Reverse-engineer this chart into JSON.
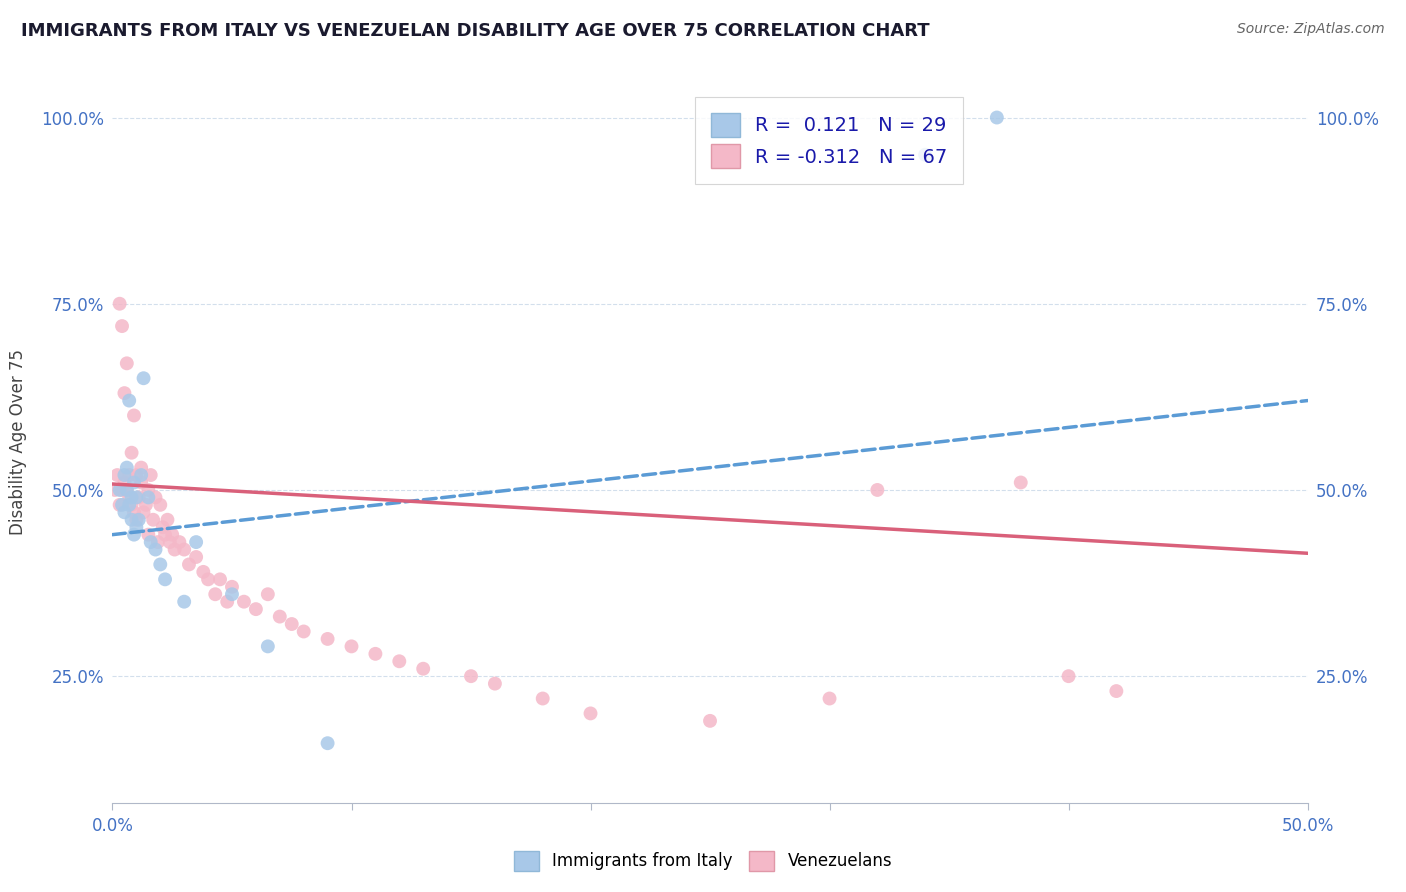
{
  "title": "IMMIGRANTS FROM ITALY VS VENEZUELAN DISABILITY AGE OVER 75 CORRELATION CHART",
  "source": "Source: ZipAtlas.com",
  "legend_label1": "Immigrants from Italy",
  "legend_label2": "Venezuelans",
  "r1": 0.121,
  "n1": 29,
  "r2": -0.312,
  "n2": 67,
  "blue_color": "#a8c8e8",
  "pink_color": "#f4b8c8",
  "line_blue": "#5b9bd5",
  "line_pink": "#d9607a",
  "x_min": 0.0,
  "x_max": 0.5,
  "y_min": 0.08,
  "y_max": 1.05,
  "italy_x": [
    0.003,
    0.004,
    0.005,
    0.005,
    0.006,
    0.006,
    0.007,
    0.007,
    0.008,
    0.008,
    0.009,
    0.009,
    0.01,
    0.01,
    0.011,
    0.012,
    0.013,
    0.015,
    0.016,
    0.018,
    0.02,
    0.022,
    0.03,
    0.035,
    0.05,
    0.065,
    0.34,
    0.37,
    0.09
  ],
  "italy_y": [
    0.5,
    0.48,
    0.52,
    0.47,
    0.5,
    0.53,
    0.62,
    0.48,
    0.49,
    0.46,
    0.44,
    0.51,
    0.49,
    0.45,
    0.46,
    0.52,
    0.65,
    0.49,
    0.43,
    0.42,
    0.4,
    0.38,
    0.35,
    0.43,
    0.36,
    0.29,
    0.95,
    1.0,
    0.16
  ],
  "venezuela_x": [
    0.001,
    0.002,
    0.003,
    0.003,
    0.004,
    0.004,
    0.005,
    0.005,
    0.006,
    0.006,
    0.007,
    0.007,
    0.008,
    0.008,
    0.009,
    0.009,
    0.01,
    0.01,
    0.011,
    0.012,
    0.012,
    0.013,
    0.014,
    0.015,
    0.015,
    0.016,
    0.017,
    0.018,
    0.019,
    0.02,
    0.021,
    0.022,
    0.023,
    0.024,
    0.025,
    0.026,
    0.028,
    0.03,
    0.032,
    0.035,
    0.038,
    0.04,
    0.043,
    0.045,
    0.048,
    0.05,
    0.055,
    0.06,
    0.065,
    0.07,
    0.075,
    0.08,
    0.09,
    0.1,
    0.11,
    0.12,
    0.13,
    0.15,
    0.16,
    0.18,
    0.2,
    0.25,
    0.3,
    0.32,
    0.38,
    0.4,
    0.42
  ],
  "venezuela_y": [
    0.5,
    0.52,
    0.75,
    0.48,
    0.72,
    0.5,
    0.51,
    0.63,
    0.5,
    0.67,
    0.52,
    0.49,
    0.55,
    0.48,
    0.6,
    0.47,
    0.52,
    0.46,
    0.49,
    0.51,
    0.53,
    0.47,
    0.48,
    0.5,
    0.44,
    0.52,
    0.46,
    0.49,
    0.43,
    0.48,
    0.45,
    0.44,
    0.46,
    0.43,
    0.44,
    0.42,
    0.43,
    0.42,
    0.4,
    0.41,
    0.39,
    0.38,
    0.36,
    0.38,
    0.35,
    0.37,
    0.35,
    0.34,
    0.36,
    0.33,
    0.32,
    0.31,
    0.3,
    0.29,
    0.28,
    0.27,
    0.26,
    0.25,
    0.24,
    0.22,
    0.2,
    0.19,
    0.22,
    0.5,
    0.51,
    0.25,
    0.23
  ],
  "italy_line_x0": 0.0,
  "italy_line_x1": 0.5,
  "italy_line_y0": 0.44,
  "italy_line_y1": 0.62,
  "ven_line_x0": 0.0,
  "ven_line_x1": 0.5,
  "ven_line_y0": 0.508,
  "ven_line_y1": 0.415
}
